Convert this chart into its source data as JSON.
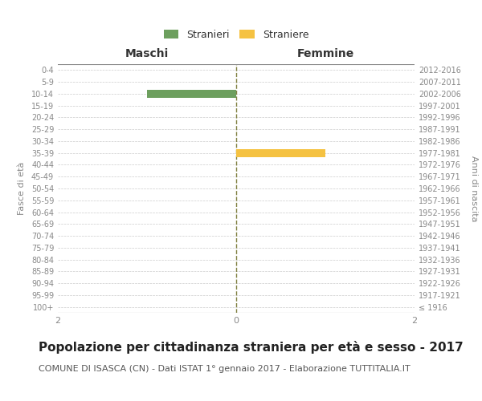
{
  "age_groups": [
    "100+",
    "95-99",
    "90-94",
    "85-89",
    "80-84",
    "75-79",
    "70-74",
    "65-69",
    "60-64",
    "55-59",
    "50-54",
    "45-49",
    "40-44",
    "35-39",
    "30-34",
    "25-29",
    "20-24",
    "15-19",
    "10-14",
    "5-9",
    "0-4"
  ],
  "birth_years": [
    "≤ 1916",
    "1917-1921",
    "1922-1926",
    "1927-1931",
    "1932-1936",
    "1937-1941",
    "1942-1946",
    "1947-1951",
    "1952-1956",
    "1957-1961",
    "1962-1966",
    "1967-1971",
    "1972-1976",
    "1977-1981",
    "1982-1986",
    "1987-1991",
    "1992-1996",
    "1997-2001",
    "2002-2006",
    "2007-2011",
    "2012-2016"
  ],
  "males": [
    0,
    0,
    0,
    0,
    0,
    0,
    0,
    0,
    0,
    0,
    0,
    0,
    0,
    0,
    0,
    0,
    0,
    0,
    1,
    0,
    0
  ],
  "females": [
    0,
    0,
    0,
    0,
    0,
    0,
    0,
    0,
    0,
    0,
    0,
    0,
    0,
    1,
    0,
    0,
    0,
    0,
    0,
    0,
    0
  ],
  "male_color": "#6d9f5e",
  "female_color": "#f5c242",
  "male_label": "Stranieri",
  "female_label": "Straniere",
  "xlabel_left": "Maschi",
  "xlabel_right": "Femmine",
  "ylabel_left": "Fasce di età",
  "ylabel_right": "Anni di nascita",
  "xlim": 2,
  "title": "Popolazione per cittadinanza straniera per età e sesso - 2017",
  "subtitle": "COMUNE DI ISASCA (CN) - Dati ISTAT 1° gennaio 2017 - Elaborazione TUTTITALIA.IT",
  "title_fontsize": 11,
  "subtitle_fontsize": 8,
  "background_color": "#ffffff",
  "grid_color": "#cccccc",
  "tick_color": "#888888",
  "axis_line_color": "#888888",
  "center_line_color": "#808040"
}
